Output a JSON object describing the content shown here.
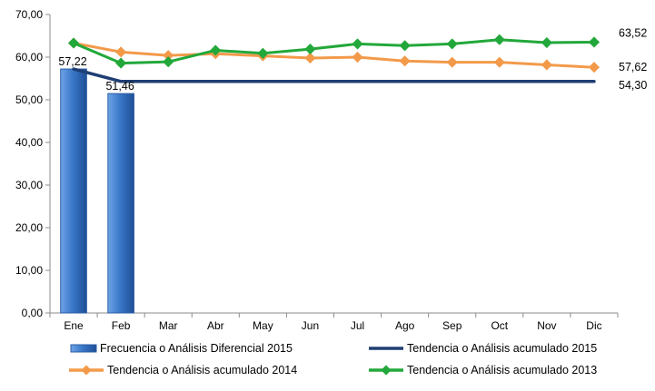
{
  "chart_data": {
    "type": "bar",
    "categories": [
      "Ene",
      "Feb",
      "Mar",
      "Abr",
      "May",
      "Jun",
      "Jul",
      "Ago",
      "Sep",
      "Oct",
      "Nov",
      "Dic"
    ],
    "ylim": [
      0,
      70
    ],
    "yticks": [
      "0,00",
      "10,00",
      "20,00",
      "30,00",
      "40,00",
      "50,00",
      "60,00",
      "70,00"
    ],
    "grid": false,
    "legend_position": "bottom",
    "series": [
      {
        "name": "Frecuencia o Análisis Diferencial 2015",
        "type": "bar",
        "color": "#3a78c9",
        "values": [
          57.22,
          51.46,
          null,
          null,
          null,
          null,
          null,
          null,
          null,
          null,
          null,
          null
        ],
        "data_labels": [
          "57,22",
          "51,46"
        ]
      },
      {
        "name": "Tendencia o Análisis acumulado 2015",
        "type": "line",
        "color": "#1f3f73",
        "values": [
          57.22,
          54.3,
          54.3,
          54.3,
          54.3,
          54.3,
          54.3,
          54.3,
          54.3,
          54.3,
          54.3,
          54.3
        ],
        "end_label": "54,30"
      },
      {
        "name": "Tendencia o Análisis acumulado 2014",
        "type": "line",
        "color": "#f39a4a",
        "values": [
          63.3,
          61.2,
          60.4,
          60.8,
          60.3,
          59.8,
          60.0,
          59.1,
          58.8,
          58.8,
          58.2,
          57.62
        ],
        "end_label": "57,62"
      },
      {
        "name": "Tendencia o Análisis acumulado 2013",
        "type": "line",
        "color": "#22a83a",
        "values": [
          63.3,
          58.6,
          58.9,
          61.6,
          60.9,
          61.9,
          63.1,
          62.7,
          63.1,
          64.1,
          63.4,
          63.52
        ],
        "end_label": "63,52"
      }
    ]
  }
}
